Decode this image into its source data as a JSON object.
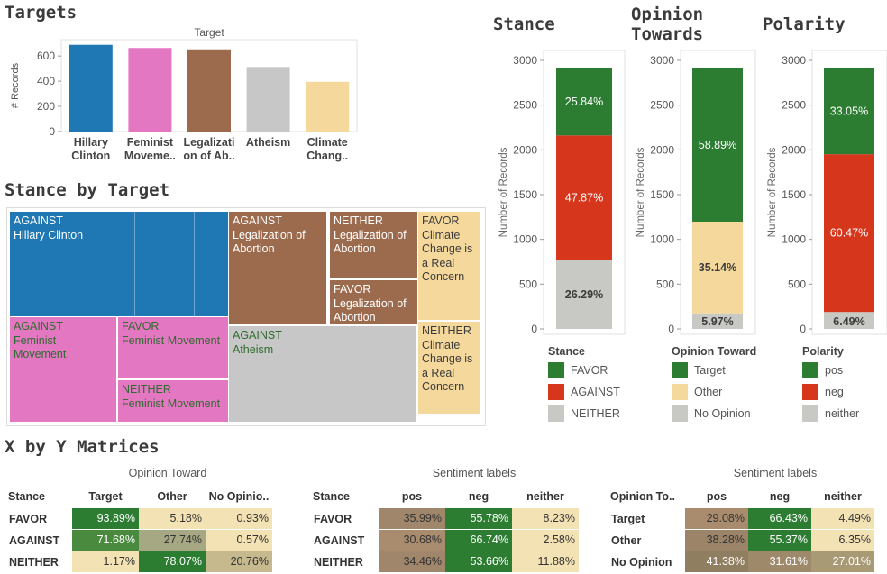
{
  "titles": {
    "targets": "Targets",
    "stance_by_target": "Stance by Target",
    "matrices": "X by Y Matrices",
    "stance": "Stance",
    "opinion_towards": "Opinion Towards",
    "polarity": "Polarity"
  },
  "colors": {
    "blue": "#1f77b4",
    "pink": "#e377c2",
    "brown": "#9c6b4e",
    "grey": "#c7c7c7",
    "tan": "#f5d89c",
    "green": "#2c7d32",
    "red": "#d6361c",
    "light": "#c8c8c4"
  },
  "chart_data": [
    {
      "id": "targets",
      "type": "bar",
      "title": "Target",
      "ylabel": "# Records",
      "categories": [
        "Hillary Clinton",
        "Feminist Movemen..",
        "Legalization of Ab..",
        "Atheism",
        "Climate Chang.."
      ],
      "tick_labels": [
        [
          "Hillary",
          "Clinton"
        ],
        [
          "Feminist",
          "Moveme.."
        ],
        [
          "Legalizati",
          "on of Ab.."
        ],
        [
          "Atheism"
        ],
        [
          "Climate",
          "Chang.."
        ]
      ],
      "values": [
        689,
        664,
        653,
        513,
        395
      ],
      "colors": [
        "#1f77b4",
        "#e377c2",
        "#9c6b4e",
        "#c7c7c7",
        "#f5d89c"
      ],
      "ylim": [
        0,
        730
      ],
      "yticks": [
        0,
        200,
        400,
        600
      ]
    },
    {
      "id": "stance",
      "type": "bar",
      "stacked": true,
      "ylabel": "Number of Records",
      "ylim": [
        0,
        3050
      ],
      "yticks": [
        0,
        500,
        1000,
        1500,
        2000,
        2500,
        3000
      ],
      "total": 2914,
      "segments": [
        {
          "name": "NEITHER",
          "pct": 26.29,
          "label": "26.29%",
          "color": "#c8c8c4",
          "text": "dark"
        },
        {
          "name": "AGAINST",
          "pct": 47.87,
          "label": "47.87%",
          "color": "#d6361c",
          "text": "light"
        },
        {
          "name": "FAVOR",
          "pct": 25.84,
          "label": "25.84%",
          "color": "#2c7d32",
          "text": "light"
        }
      ],
      "legend_title": "Stance",
      "legend": [
        {
          "label": "FAVOR",
          "color": "#2c7d32"
        },
        {
          "label": "AGAINST",
          "color": "#d6361c"
        },
        {
          "label": "NEITHER",
          "color": "#c8c8c4"
        }
      ]
    },
    {
      "id": "opinion",
      "type": "bar",
      "stacked": true,
      "ylabel": "Number of Records",
      "ylim": [
        0,
        3050
      ],
      "yticks": [
        0,
        500,
        1000,
        1500,
        2000,
        2500,
        3000
      ],
      "total": 2914,
      "segments": [
        {
          "name": "No Opinion",
          "pct": 5.97,
          "label": "5.97%",
          "color": "#c8c8c4",
          "text": "dark"
        },
        {
          "name": "Other",
          "pct": 35.14,
          "label": "35.14%",
          "color": "#f5d89c",
          "text": "dark"
        },
        {
          "name": "Target",
          "pct": 58.89,
          "label": "58.89%",
          "color": "#2c7d32",
          "text": "light"
        }
      ],
      "legend_title": "Opinion Toward",
      "legend": [
        {
          "label": "Target",
          "color": "#2c7d32"
        },
        {
          "label": "Other",
          "color": "#f5d89c"
        },
        {
          "label": "No Opinion",
          "color": "#c8c8c4"
        }
      ]
    },
    {
      "id": "polarity",
      "type": "bar",
      "stacked": true,
      "ylabel": "Number of Records",
      "ylim": [
        0,
        3050
      ],
      "yticks": [
        0,
        500,
        1000,
        1500,
        2000,
        2500,
        3000
      ],
      "total": 2914,
      "segments": [
        {
          "name": "neither",
          "pct": 6.49,
          "label": "6.49%",
          "color": "#c8c8c4",
          "text": "dark"
        },
        {
          "name": "neg",
          "pct": 60.47,
          "label": "60.47%",
          "color": "#d6361c",
          "text": "light"
        },
        {
          "name": "pos",
          "pct": 33.05,
          "label": "33.05%",
          "color": "#2c7d32",
          "text": "light"
        }
      ],
      "legend_title": "Polarity",
      "legend": [
        {
          "label": "pos",
          "color": "#2c7d32"
        },
        {
          "label": "neg",
          "color": "#d6361c"
        },
        {
          "label": "neither",
          "color": "#c8c8c4"
        }
      ]
    },
    {
      "id": "stance_by_target",
      "type": "treemap",
      "cells": [
        {
          "label": "AGAINST Hillary Clinton",
          "lines": [
            "AGAINST",
            "Hillary Clinton"
          ],
          "color": "#1f77b4",
          "text": "light"
        },
        {
          "label": "AGAINST Legalization of Abortion",
          "lines": [
            "AGAINST",
            "Legalization of",
            "Abortion"
          ],
          "color": "#9c6b4e",
          "text": "light"
        },
        {
          "label": "NEITHER Legalization of Abortion",
          "lines": [
            "NEITHER",
            "Legalization of",
            "Abortion"
          ],
          "color": "#9c6b4e",
          "text": "light"
        },
        {
          "label": "FAVOR Legalization of Abortion",
          "lines": [
            "FAVOR",
            "Legalization of",
            "Abortion"
          ],
          "color": "#9c6b4e",
          "text": "light"
        },
        {
          "label": "FAVOR Climate Change is a Real Concern",
          "lines": [
            "FAVOR",
            "Climate",
            "Change is",
            "a Real",
            "Concern"
          ],
          "color": "#f5d89c",
          "text": "dark"
        },
        {
          "label": "NEITHER Climate Change is a Real Concern",
          "lines": [
            "NEITHER",
            "Climate",
            "Change is",
            "a Real",
            "Concern"
          ],
          "color": "#f5d89c",
          "text": "dark"
        },
        {
          "label": "AGAINST Feminist Movement",
          "lines": [
            "AGAINST",
            "Feminist",
            "Movement"
          ],
          "color": "#e377c2",
          "text": "green"
        },
        {
          "label": "FAVOR Feminist Movement",
          "lines": [
            "FAVOR",
            "Feminist Movement"
          ],
          "color": "#e377c2",
          "text": "green"
        },
        {
          "label": "NEITHER Feminist Movement",
          "lines": [
            "NEITHER",
            "Feminist Movement"
          ],
          "color": "#e377c2",
          "text": "green"
        },
        {
          "label": "AGAINST Atheism",
          "lines": [
            "AGAINST",
            "Atheism"
          ],
          "color": "#c7c7c7",
          "text": "green"
        }
      ]
    },
    {
      "id": "matrix1",
      "type": "table",
      "title": "Opinion Toward",
      "row_header": "Stance",
      "columns": [
        "Target",
        "Other",
        "No Opinio.."
      ],
      "rows": [
        {
          "label": "FAVOR",
          "values": [
            "93.89%",
            "5.18%",
            "0.93%"
          ],
          "bg": [
            "#2c7d32",
            "#f3e2b4",
            "#f3e2b4"
          ],
          "fg": [
            "#fff",
            "#333",
            "#333"
          ]
        },
        {
          "label": "AGAINST",
          "values": [
            "71.68%",
            "27.74%",
            "0.57%"
          ],
          "bg": [
            "#4a8a3e",
            "#a5a882",
            "#f3e2b4"
          ],
          "fg": [
            "#fff",
            "#333",
            "#333"
          ]
        },
        {
          "label": "NEITHER",
          "values": [
            "1.17%",
            "78.07%",
            "20.76%"
          ],
          "bg": [
            "#f3e2b4",
            "#2c7d32",
            "#c6b98e"
          ],
          "fg": [
            "#333",
            "#fff",
            "#333"
          ]
        }
      ]
    },
    {
      "id": "matrix2",
      "type": "table",
      "title": "Sentiment labels",
      "row_header": "Stance",
      "columns": [
        "pos",
        "neg",
        "neither"
      ],
      "rows": [
        {
          "label": "FAVOR",
          "values": [
            "35.99%",
            "55.78%",
            "8.23%"
          ],
          "bg": [
            "#a0866a",
            "#2c7d32",
            "#f3e2b4"
          ],
          "fg": [
            "#333",
            "#fff",
            "#333"
          ]
        },
        {
          "label": "AGAINST",
          "values": [
            "30.68%",
            "66.74%",
            "2.58%"
          ],
          "bg": [
            "#a88c6d",
            "#2c7d32",
            "#f3e2b4"
          ],
          "fg": [
            "#333",
            "#fff",
            "#333"
          ]
        },
        {
          "label": "NEITHER",
          "values": [
            "34.46%",
            "53.66%",
            "11.88%"
          ],
          "bg": [
            "#a0866a",
            "#2c7d32",
            "#f3e2b4"
          ],
          "fg": [
            "#333",
            "#fff",
            "#333"
          ]
        }
      ]
    },
    {
      "id": "matrix3",
      "type": "table",
      "title": "Sentiment labels",
      "row_header": "Opinion To..",
      "columns": [
        "pos",
        "neg",
        "neither"
      ],
      "rows": [
        {
          "label": "Target",
          "values": [
            "29.08%",
            "66.43%",
            "4.49%"
          ],
          "bg": [
            "#a88c6d",
            "#2c7d32",
            "#f3e2b4"
          ],
          "fg": [
            "#333",
            "#fff",
            "#333"
          ]
        },
        {
          "label": "Other",
          "values": [
            "38.28%",
            "55.37%",
            "6.35%"
          ],
          "bg": [
            "#9c8468",
            "#2c7d32",
            "#f3e2b4"
          ],
          "fg": [
            "#333",
            "#fff",
            "#333"
          ]
        },
        {
          "label": "No Opinion",
          "values": [
            "41.38%",
            "31.61%",
            "27.01%"
          ],
          "bg": [
            "#8f7f60",
            "#9e8a6a",
            "#a89a74"
          ],
          "fg": [
            "#fff",
            "#fff",
            "#fff"
          ]
        }
      ]
    }
  ]
}
